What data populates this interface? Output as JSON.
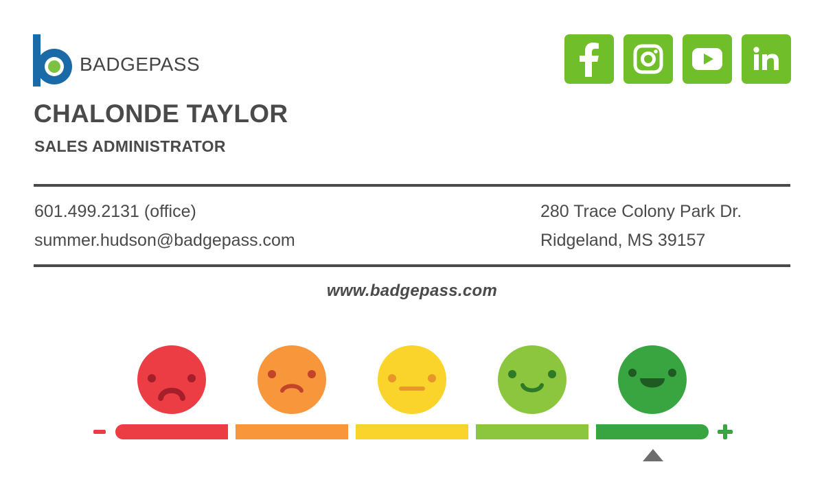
{
  "brand": {
    "name": "BADGEPASS",
    "logo_blue": "#1b6aa8",
    "logo_green": "#7dc142"
  },
  "social": [
    {
      "icon": "facebook-icon",
      "label": "Facebook"
    },
    {
      "icon": "instagram-icon",
      "label": "Instagram"
    },
    {
      "icon": "youtube-icon",
      "label": "YouTube"
    },
    {
      "icon": "linkedin-icon",
      "label": "LinkedIn"
    }
  ],
  "social_color": "#6fbe2a",
  "person": {
    "name": "CHALONDE TAYLOR",
    "title": "SALES ADMINISTRATOR"
  },
  "contact": {
    "phone": "601.499.2131 (office)",
    "email": "summer.hudson@badgepass.com",
    "address_line1": "280 Trace Colony Park Dr.",
    "address_line2": "Ridgeland, MS 39157"
  },
  "website": "www.badgepass.com",
  "rating": {
    "levels": [
      {
        "mood": "very-unhappy",
        "color": "#ec3d44"
      },
      {
        "mood": "unhappy",
        "color": "#f7963b"
      },
      {
        "mood": "neutral",
        "color": "#fad42a"
      },
      {
        "mood": "happy",
        "color": "#8cc63f"
      },
      {
        "mood": "very-happy",
        "color": "#38a541"
      }
    ],
    "selected_index": 4,
    "min_symbol": "−",
    "max_symbol": "+"
  }
}
